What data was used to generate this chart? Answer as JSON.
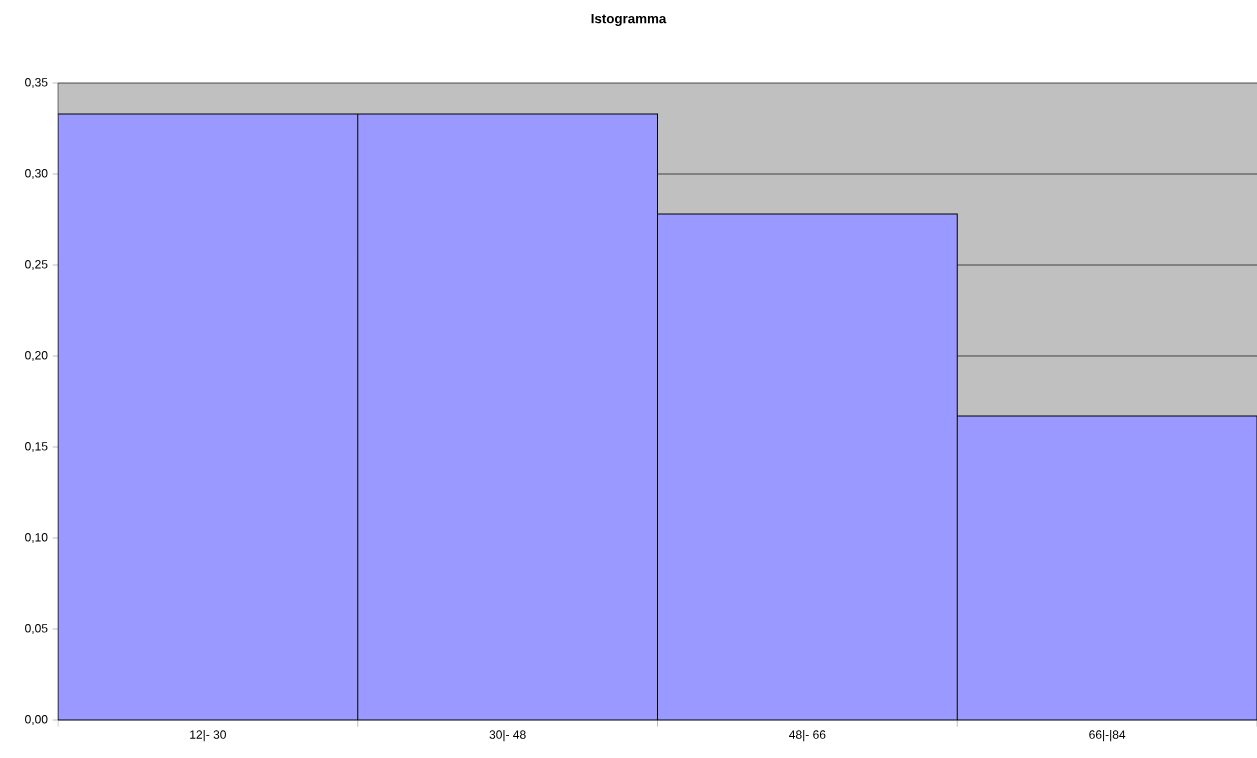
{
  "chart_data": {
    "type": "bar",
    "title": "Istogramma",
    "categories": [
      "12|- 30",
      "30|- 48",
      "48|- 66",
      "66|-|84"
    ],
    "values": [
      0.333,
      0.333,
      0.278,
      0.167
    ],
    "color": "#9999ff",
    "ylim": [
      0,
      0.35
    ],
    "yticks": [
      {
        "value": 0,
        "label": "0,00"
      },
      {
        "value": 0.05,
        "label": "0,05"
      },
      {
        "value": 0.1,
        "label": "0,10"
      },
      {
        "value": 0.15,
        "label": "0,15"
      },
      {
        "value": 0.2,
        "label": "0,20"
      },
      {
        "value": 0.25,
        "label": "0,25"
      },
      {
        "value": 0.3,
        "label": "0,30"
      },
      {
        "value": 0.35,
        "label": "0,35"
      }
    ],
    "grid": "y"
  }
}
